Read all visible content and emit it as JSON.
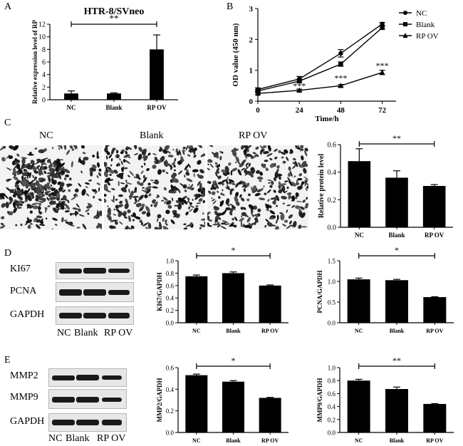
{
  "panel_labels": {
    "A": "A",
    "B": "B",
    "C": "C",
    "D": "D",
    "E": "E"
  },
  "panel_c_image_labels": [
    "NC",
    "Blank",
    "RP OV"
  ],
  "blot_d": {
    "rows": [
      "KI67",
      "PCNA",
      "GAPDH"
    ],
    "lanes": [
      "NC",
      "Blank",
      "RP OV"
    ]
  },
  "blot_e": {
    "rows": [
      "MMP2",
      "MMP9",
      "GAPDH"
    ],
    "lanes": [
      "NC",
      "Blank",
      "RP OV"
    ]
  },
  "chart_data": [
    {
      "id": "A",
      "type": "bar",
      "title": "HTR-8/SVneo",
      "ylabel": "Relative expression level of RP",
      "xlabel": "",
      "categories": [
        "NC",
        "Blank",
        "RP OV"
      ],
      "values": [
        1.0,
        1.0,
        8.0
      ],
      "errors": [
        0.4,
        0.1,
        2.3
      ],
      "ylim": [
        0,
        12
      ],
      "yticks": [
        0,
        2,
        4,
        6,
        8,
        10,
        12
      ],
      "significance": {
        "label": "**",
        "from": 0,
        "to": 2
      }
    },
    {
      "id": "B",
      "type": "line",
      "title": "",
      "xlabel": "Time/h",
      "ylabel": "OD value (450 nm)",
      "x": [
        0,
        24,
        48,
        72
      ],
      "xticks": [
        0,
        24,
        48,
        72
      ],
      "xlim": [
        0,
        80
      ],
      "ylim": [
        0,
        3
      ],
      "yticks": [
        0,
        1,
        2,
        3
      ],
      "legend": "top-right",
      "series": [
        {
          "name": "NC",
          "marker": "circle",
          "values": [
            0.38,
            0.72,
            1.55,
            2.5
          ],
          "errors": [
            0.05,
            0.08,
            0.12,
            0.05
          ]
        },
        {
          "name": "Blank",
          "marker": "square",
          "values": [
            0.33,
            0.65,
            1.2,
            2.38
          ],
          "errors": [
            0.04,
            0.06,
            0.07,
            0.05
          ]
        },
        {
          "name": "RP OV",
          "marker": "triangle",
          "values": [
            0.25,
            0.35,
            0.5,
            0.93
          ],
          "errors": [
            0.03,
            0.04,
            0.04,
            0.07
          ]
        }
      ],
      "annotations": [
        {
          "x": 24,
          "y": 0.5,
          "text": "***"
        },
        {
          "x": 48,
          "y": 0.75,
          "text": "***"
        },
        {
          "x": 72,
          "y": 1.15,
          "text": "***"
        }
      ]
    },
    {
      "id": "C",
      "type": "bar",
      "title": "",
      "ylabel": "Relative protein level",
      "xlabel": "",
      "categories": [
        "NC",
        "Blank",
        "RP OV"
      ],
      "values": [
        0.48,
        0.36,
        0.3
      ],
      "errors": [
        0.09,
        0.05,
        0.01
      ],
      "ylim": [
        0,
        0.6
      ],
      "yticks": [
        0.0,
        0.2,
        0.4,
        0.6
      ],
      "significance": {
        "label": "**",
        "from": 0,
        "to": 2
      }
    },
    {
      "id": "D1",
      "type": "bar",
      "title": "",
      "ylabel": "KI67/GAPDH",
      "xlabel": "",
      "categories": [
        "NC",
        "Blank",
        "RP OV"
      ],
      "values": [
        0.75,
        0.8,
        0.6
      ],
      "errors": [
        0.02,
        0.02,
        0.01
      ],
      "ylim": [
        0,
        1.0
      ],
      "yticks": [
        0.0,
        0.2,
        0.4,
        0.6,
        0.8,
        1.0
      ],
      "significance": {
        "label": "*",
        "from": 0,
        "to": 2
      }
    },
    {
      "id": "D2",
      "type": "bar",
      "title": "",
      "ylabel": "PCNA/GAPDH",
      "xlabel": "",
      "categories": [
        "NC",
        "Blank",
        "RP OV"
      ],
      "values": [
        1.05,
        1.03,
        0.62
      ],
      "errors": [
        0.03,
        0.02,
        0.01
      ],
      "ylim": [
        0,
        1.5
      ],
      "yticks": [
        0.0,
        0.5,
        1.0,
        1.5
      ],
      "significance": {
        "label": "*",
        "from": 0,
        "to": 2
      }
    },
    {
      "id": "E1",
      "type": "bar",
      "title": "",
      "ylabel": "MMP2/GAPDH",
      "xlabel": "",
      "categories": [
        "NC",
        "Blank",
        "RP OV"
      ],
      "values": [
        0.53,
        0.47,
        0.32
      ],
      "errors": [
        0.01,
        0.01,
        0.005
      ],
      "ylim": [
        0,
        0.6
      ],
      "yticks": [
        0.0,
        0.2,
        0.4,
        0.6
      ],
      "significance": {
        "label": "*",
        "from": 0,
        "to": 2
      }
    },
    {
      "id": "E2",
      "type": "bar",
      "title": "",
      "ylabel": "MMP9/GAPDH",
      "xlabel": "",
      "categories": [
        "NC",
        "Blank",
        "RP OV"
      ],
      "values": [
        0.8,
        0.67,
        0.44
      ],
      "errors": [
        0.02,
        0.03,
        0.005
      ],
      "ylim": [
        0,
        1.0
      ],
      "yticks": [
        0.0,
        0.2,
        0.4,
        0.6,
        0.8,
        1.0
      ],
      "significance": {
        "label": "**",
        "from": 0,
        "to": 2
      }
    }
  ]
}
